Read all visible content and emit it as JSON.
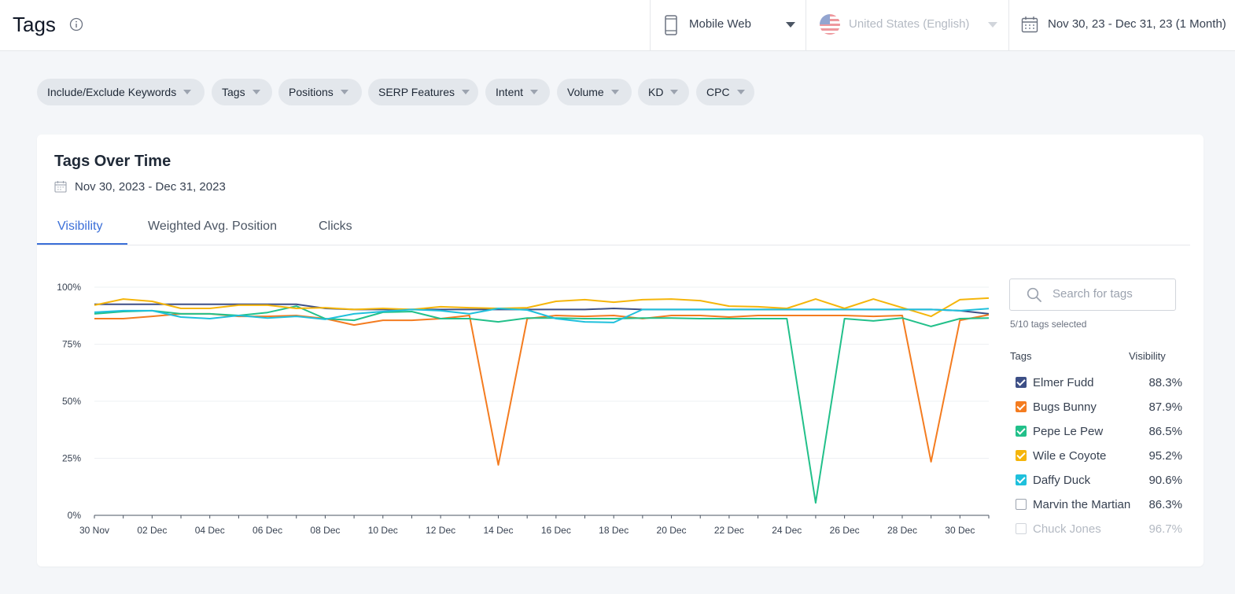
{
  "header": {
    "title": "Tags",
    "device": "Mobile Web",
    "country": "United States (English)",
    "date_range": "Nov 30, 23 - Dec 31, 23 (1 Month)"
  },
  "filters": [
    "Include/Exclude Keywords",
    "Tags",
    "Positions",
    "SERP Features",
    "Intent",
    "Volume",
    "KD",
    "CPC"
  ],
  "card": {
    "title": "Tags Over Time",
    "date_range": "Nov 30, 2023 - Dec 31, 2023",
    "tabs": [
      "Visibility",
      "Weighted Avg. Position",
      "Clicks"
    ],
    "active_tab": "Visibility"
  },
  "search": {
    "placeholder": "Search for tags"
  },
  "selected_count": "5/10 tags selected",
  "legend": {
    "col_tags": "Tags",
    "col_visibility": "Visibility",
    "items": [
      {
        "name": "Elmer Fudd",
        "value": "88.3%",
        "color": "#3d4f86",
        "checked": true
      },
      {
        "name": "Bugs Bunny",
        "value": "87.9%",
        "color": "#f47c20",
        "checked": true
      },
      {
        "name": "Pepe Le Pew",
        "value": "86.5%",
        "color": "#22c08a",
        "checked": true
      },
      {
        "name": "Wile e Coyote",
        "value": "95.2%",
        "color": "#f5b50a",
        "checked": true
      },
      {
        "name": "Daffy Duck",
        "value": "90.6%",
        "color": "#1fc0dc",
        "checked": true
      },
      {
        "name": "Marvin the Martian",
        "value": "86.3%",
        "color": "#9ca3af",
        "checked": false
      },
      {
        "name": "Chuck Jones",
        "value": "96.7%",
        "color": "#d1d5db",
        "checked": false
      }
    ]
  },
  "chart_data": {
    "type": "line",
    "x": [
      "30 Nov",
      "01 Dec",
      "02 Dec",
      "03 Dec",
      "04 Dec",
      "05 Dec",
      "06 Dec",
      "07 Dec",
      "08 Dec",
      "09 Dec",
      "10 Dec",
      "11 Dec",
      "12 Dec",
      "13 Dec",
      "14 Dec",
      "15 Dec",
      "16 Dec",
      "17 Dec",
      "18 Dec",
      "19 Dec",
      "20 Dec",
      "21 Dec",
      "22 Dec",
      "23 Dec",
      "24 Dec",
      "25 Dec",
      "26 Dec",
      "27 Dec",
      "28 Dec",
      "29 Dec",
      "30 Dec",
      "31 Dec"
    ],
    "xticks": [
      "30 Nov",
      "02 Dec",
      "04 Dec",
      "06 Dec",
      "08 Dec",
      "10 Dec",
      "12 Dec",
      "14 Dec",
      "16 Dec",
      "18 Dec",
      "20 Dec",
      "22 Dec",
      "24 Dec",
      "26 Dec",
      "28 Dec",
      "30 Dec"
    ],
    "yticks": [
      "0%",
      "25%",
      "50%",
      "75%",
      "100%"
    ],
    "ylim": [
      0,
      100
    ],
    "grid": true,
    "series": [
      {
        "name": "Elmer Fudd",
        "color": "#3d4f86",
        "values": [
          92.5,
          92.5,
          92.5,
          92.5,
          92.5,
          92.5,
          92.5,
          92.5,
          90.7,
          90.2,
          90.2,
          90.2,
          90.2,
          90.2,
          90.2,
          90.2,
          90.2,
          90.2,
          90.7,
          90.2,
          90.2,
          90.2,
          90.2,
          90.2,
          90.2,
          90.2,
          90.2,
          90.2,
          90.2,
          90.2,
          89.7,
          88.3
        ]
      },
      {
        "name": "Bugs Bunny",
        "color": "#f47c20",
        "values": [
          86.2,
          86.2,
          87.2,
          88.3,
          88.3,
          87.2,
          87.2,
          87.6,
          86.2,
          83.4,
          85.5,
          85.5,
          86.2,
          87.6,
          22.1,
          86.2,
          87.6,
          87.2,
          87.6,
          86.2,
          87.6,
          87.6,
          86.9,
          87.6,
          87.6,
          87.6,
          87.6,
          87.2,
          87.6,
          23.5,
          85.5,
          87.9
        ]
      },
      {
        "name": "Pepe Le Pew",
        "color": "#22c08a",
        "values": [
          88.3,
          89.3,
          89.7,
          88.3,
          88.3,
          87.6,
          88.9,
          91.7,
          86.2,
          85.5,
          89.0,
          89.3,
          86.2,
          86.2,
          84.8,
          86.5,
          86.5,
          86.2,
          86.2,
          86.5,
          86.5,
          86.2,
          86.2,
          86.2,
          86.2,
          5.5,
          86.2,
          85.2,
          86.5,
          82.8,
          86.2,
          86.5
        ]
      },
      {
        "name": "Wile e Coyote",
        "color": "#f5b50a",
        "values": [
          92.1,
          94.8,
          93.8,
          90.7,
          90.7,
          92.1,
          92.1,
          90.7,
          91.0,
          90.2,
          90.7,
          90.2,
          91.4,
          91.0,
          90.7,
          91.0,
          93.8,
          94.5,
          93.4,
          94.5,
          94.8,
          94.1,
          91.7,
          91.4,
          90.7,
          94.8,
          90.7,
          94.8,
          91.0,
          87.2,
          94.5,
          95.2
        ]
      },
      {
        "name": "Daffy Duck",
        "color": "#1fc0dc",
        "values": [
          89.0,
          89.7,
          89.7,
          86.9,
          86.2,
          87.6,
          86.5,
          87.2,
          85.9,
          88.3,
          89.3,
          90.2,
          89.7,
          88.3,
          90.7,
          90.0,
          86.2,
          84.8,
          84.5,
          90.2,
          90.2,
          90.2,
          90.2,
          90.2,
          90.2,
          90.2,
          90.2,
          90.2,
          90.2,
          90.2,
          89.7,
          90.6
        ]
      }
    ]
  }
}
